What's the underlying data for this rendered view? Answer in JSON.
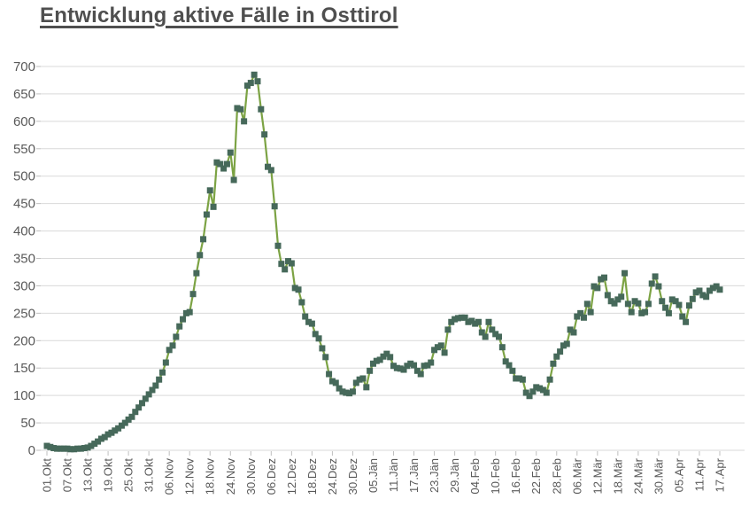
{
  "title": "Entwicklung aktive Fälle in Osttirol",
  "colors": {
    "background": "#ffffff",
    "title": "#4f4f4f",
    "axis_label": "#595959",
    "gridline": "#d9d9d9",
    "tick": "#bfbfbf",
    "line": "#7ca344",
    "marker": "#46695a"
  },
  "chart_data": {
    "type": "line",
    "title": "Entwicklung aktive Fälle in Osttirol",
    "marker": "square",
    "grid": true,
    "legend": "none",
    "ylim": [
      0,
      700
    ],
    "y_tick_step": 50,
    "y_tick_labels": [
      "0",
      "50",
      "100",
      "150",
      "200",
      "250",
      "300",
      "350",
      "400",
      "450",
      "500",
      "550",
      "600",
      "650",
      "700"
    ],
    "x_tick_interval_days": 6,
    "x_tick_labels": [
      "01.Okt",
      "07.Okt",
      "13.Okt",
      "19.Okt",
      "25.Okt",
      "31.Okt",
      "06.Nov",
      "12.Nov",
      "18.Nov",
      "24.Nov",
      "30.Nov",
      "06.Dez",
      "12.Dez",
      "18.Dez",
      "24.Dez",
      "30.Dez",
      "05.Jän",
      "11.Jän",
      "17.Jän",
      "23.Jän",
      "29.Jän",
      "04.Feb",
      "10.Feb",
      "16.Feb",
      "22.Feb",
      "28.Feb",
      "06.Mär",
      "12.Mär",
      "18.Mär",
      "24.Mär",
      "30.Mär",
      "05.Apr",
      "11.Apr",
      "17.Apr"
    ],
    "values": [
      8,
      6,
      4,
      3,
      3,
      3,
      3,
      2,
      2,
      3,
      3,
      4,
      5,
      8,
      12,
      16,
      21,
      24,
      29,
      32,
      36,
      40,
      45,
      50,
      56,
      61,
      70,
      78,
      86,
      94,
      102,
      110,
      118,
      129,
      142,
      160,
      183,
      191,
      207,
      226,
      239,
      250,
      252,
      285,
      323,
      356,
      385,
      430,
      474,
      444,
      525,
      522,
      514,
      522,
      543,
      493,
      624,
      622,
      600,
      665,
      670,
      685,
      673,
      622,
      576,
      517,
      511,
      445,
      373,
      340,
      330,
      345,
      341,
      296,
      293,
      270,
      244,
      234,
      231,
      212,
      204,
      186,
      170,
      139,
      126,
      123,
      113,
      107,
      105,
      104,
      107,
      123,
      129,
      131,
      115,
      145,
      158,
      163,
      165,
      171,
      176,
      170,
      154,
      150,
      149,
      147,
      154,
      158,
      155,
      145,
      139,
      154,
      155,
      160,
      183,
      188,
      191,
      178,
      220,
      234,
      239,
      241,
      242,
      242,
      234,
      236,
      231,
      234,
      215,
      207,
      234,
      220,
      212,
      207,
      188,
      162,
      155,
      145,
      131,
      131,
      129,
      105,
      99,
      107,
      115,
      113,
      110,
      105,
      129,
      158,
      171,
      180,
      191,
      194,
      220,
      215,
      244,
      250,
      242,
      267,
      252,
      299,
      296,
      312,
      315,
      283,
      272,
      268,
      275,
      280,
      323,
      267,
      252,
      272,
      268,
      250,
      252,
      267,
      304,
      317,
      299,
      272,
      260,
      250,
      275,
      272,
      265,
      244,
      234,
      264,
      276,
      288,
      291,
      283,
      280,
      291,
      296,
      299,
      293
    ]
  }
}
